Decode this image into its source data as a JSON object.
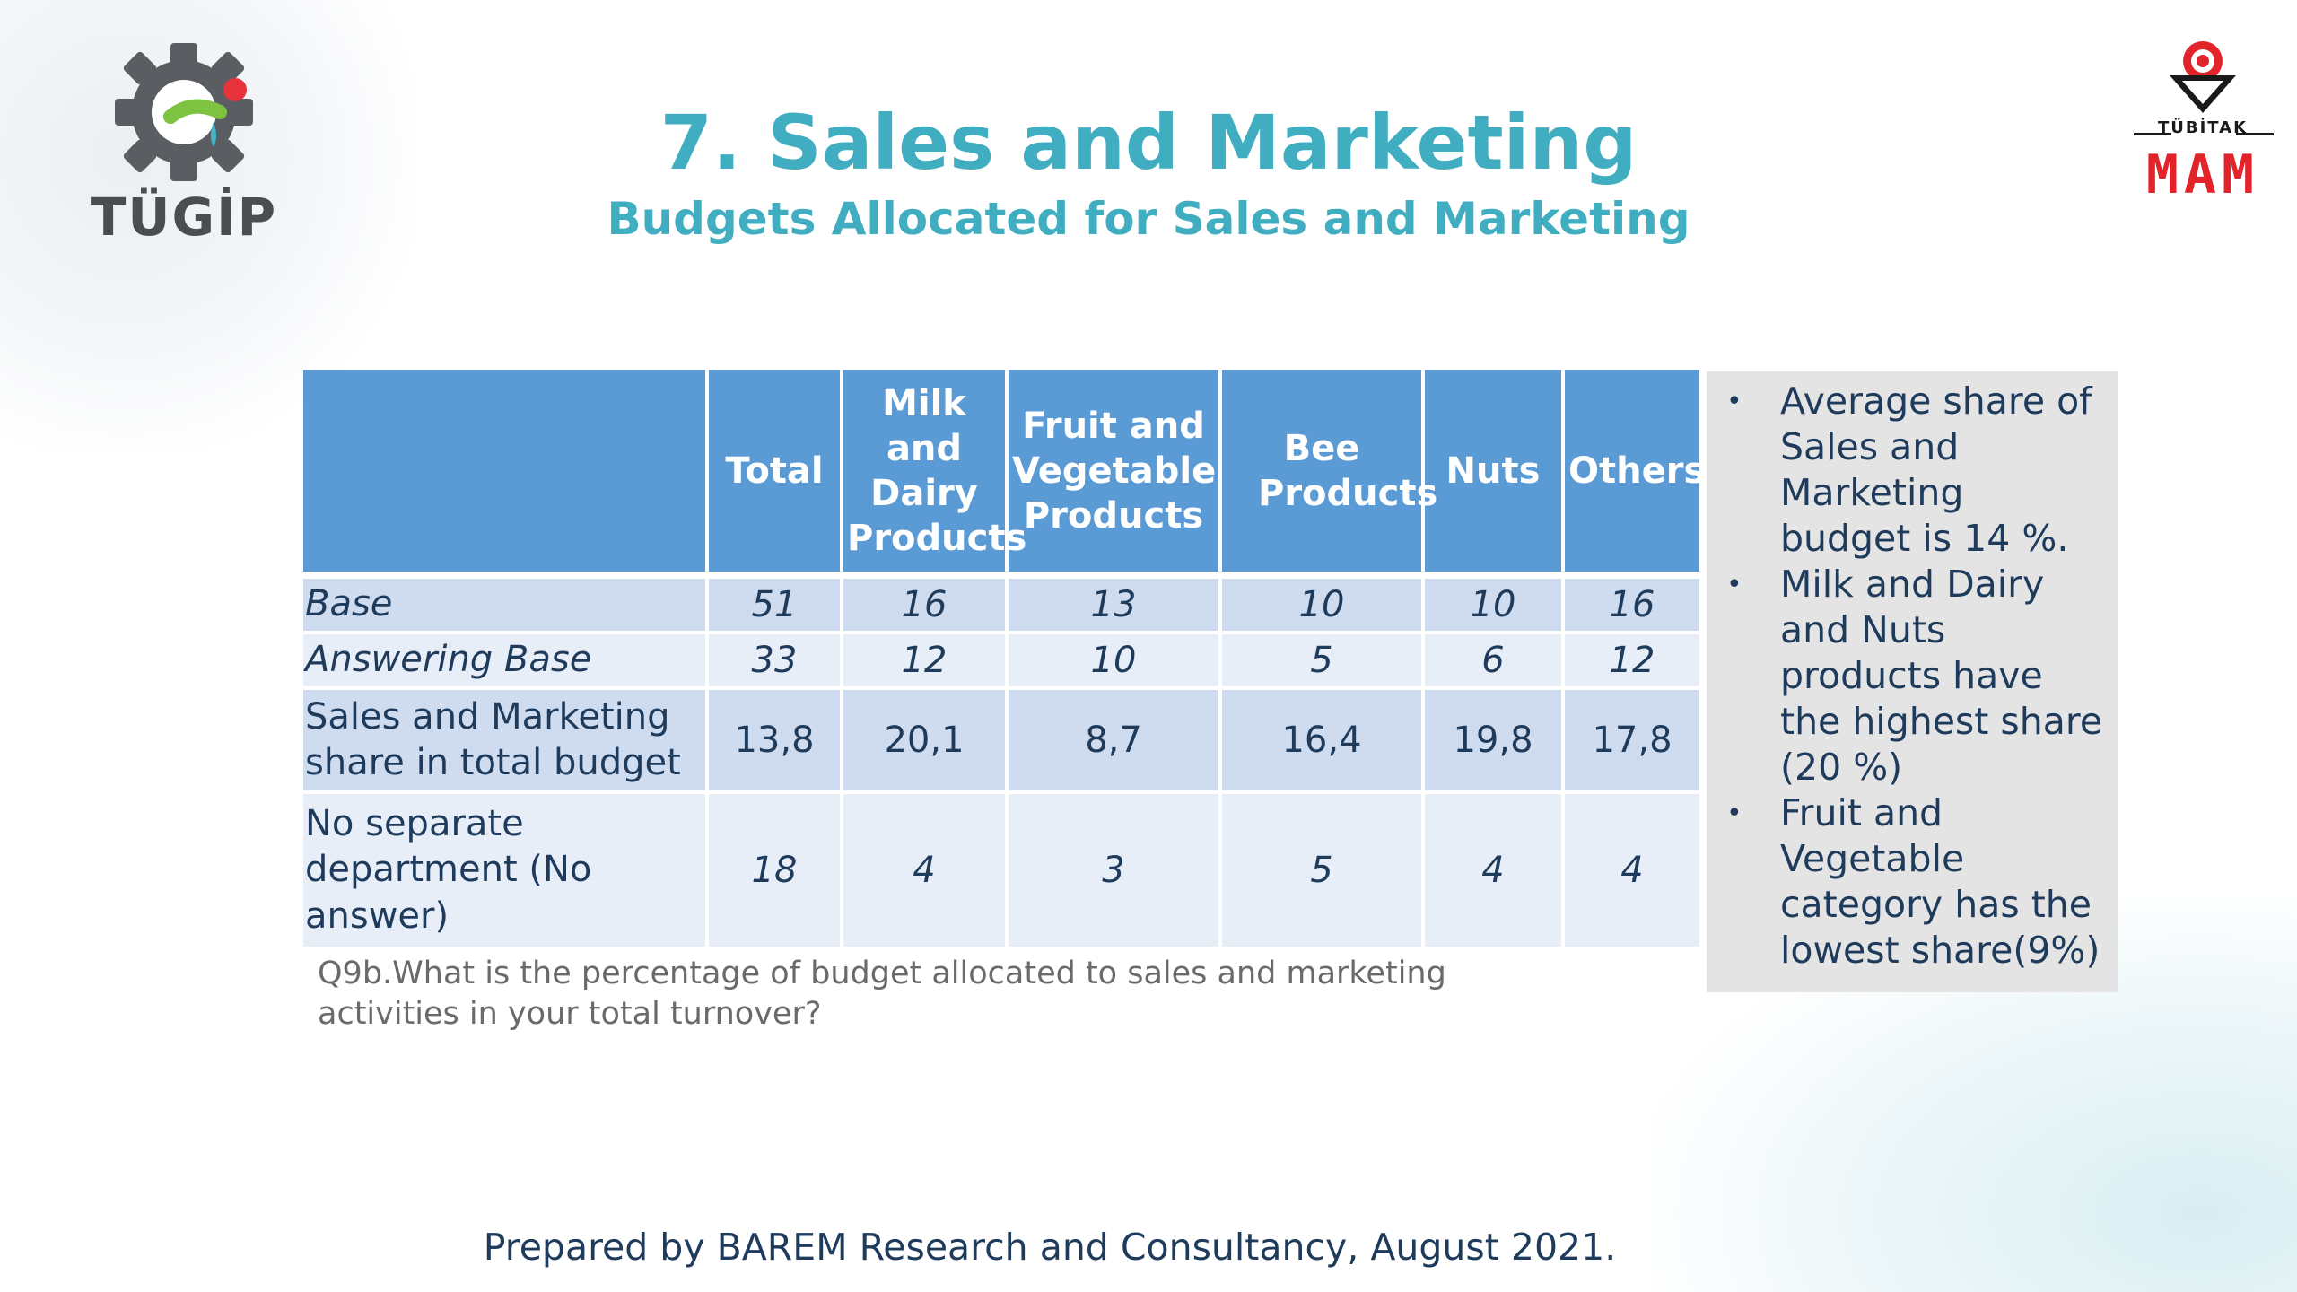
{
  "logos": {
    "left_text": "TÜGİP",
    "right_small": "TÜBİTAK",
    "right_big": "MAM"
  },
  "title": "7. Sales and Marketing",
  "subtitle": "Budgets Allocated for Sales and Marketing",
  "table": {
    "headers": [
      "",
      "Total",
      "Milk and Dairy Products",
      "Fruit and Vegetable Products",
      "Bee Products",
      "Nuts",
      "Others"
    ],
    "rows": [
      {
        "label": "Base",
        "values": [
          "51",
          "16",
          "13",
          "10",
          "10",
          "16"
        ]
      },
      {
        "label": "Answering Base",
        "values": [
          "33",
          "12",
          "10",
          "5",
          "6",
          "12"
        ]
      },
      {
        "label": "Sales and Marketing share in total budget",
        "values": [
          "13,8",
          "20,1",
          "8,7",
          "16,4",
          "19,8",
          "17,8"
        ]
      },
      {
        "label": "No separate department (No answer)",
        "values": [
          "18",
          "4",
          "3",
          "5",
          "4",
          "4"
        ]
      }
    ]
  },
  "question_note": "Q9b.What is the percentage of budget allocated to sales and marketing activities in your total turnover?",
  "sidebar": {
    "bullets": [
      "Average share of Sales and Marketing budget is 14 %.",
      "Milk and Dairy and Nuts products have the highest share (20 %)",
      "Fruit and Vegetable category has the lowest  share(9%)"
    ]
  },
  "footer": "Prepared by BAREM Research and Consultancy, August 2021.",
  "colors": {
    "title": "#40aec0",
    "header_bg": "#5b9bd5",
    "row_dark": "#cfdcef",
    "row_light": "#e8eef8",
    "text_navy": "#1f3b5c",
    "mam_red": "#e3232a"
  }
}
